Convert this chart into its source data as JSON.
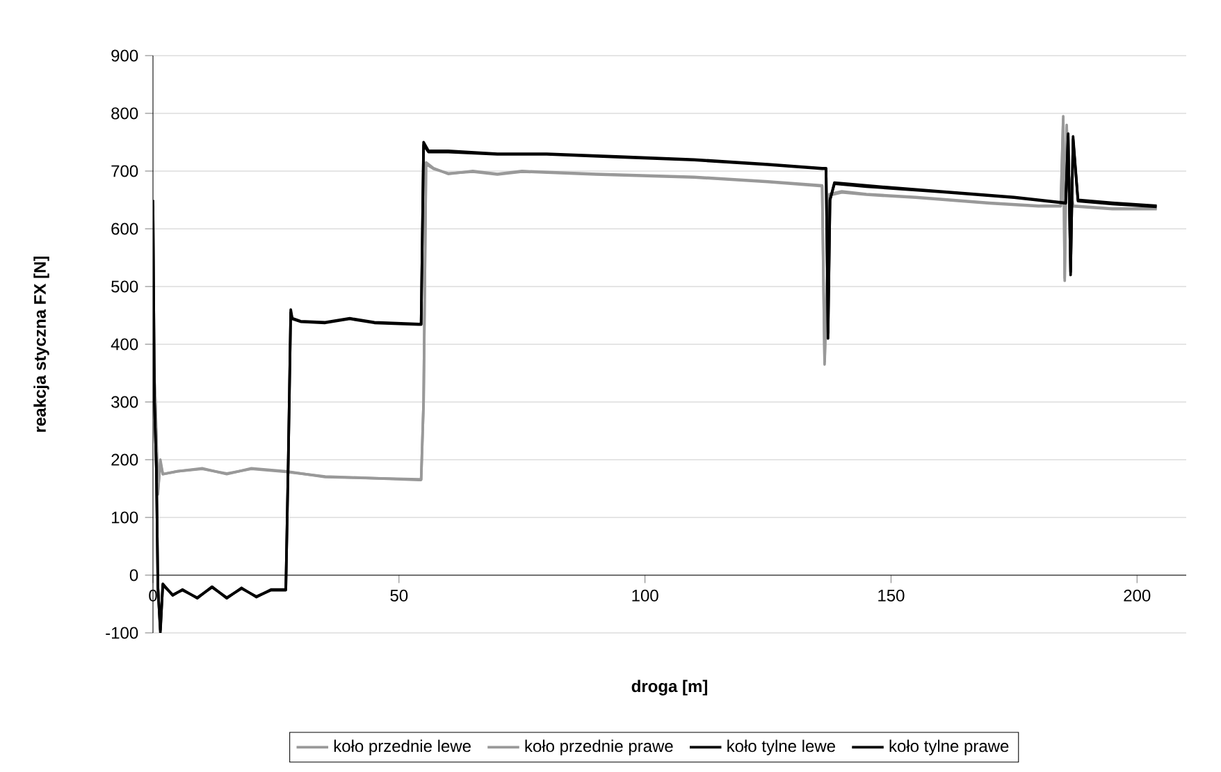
{
  "chart_data": {
    "type": "line",
    "xlabel": "droga [m]",
    "ylabel": "reakcja styczna FX [N]",
    "xlim": [
      0,
      210
    ],
    "ylim": [
      -100,
      900
    ],
    "xticks": [
      0,
      50,
      100,
      150,
      200
    ],
    "yticks": [
      -100,
      0,
      100,
      200,
      300,
      400,
      500,
      600,
      700,
      800,
      900
    ],
    "grid": "y",
    "legend": "bottom",
    "line_style": "solid",
    "marker": "none",
    "series": [
      {
        "name": "koło przednie lewe",
        "color": "#999999",
        "x": [
          0,
          0.5,
          1,
          1.5,
          2,
          5,
          10,
          15,
          20,
          27,
          35,
          45,
          54,
          54.5,
          55,
          55.5,
          57,
          60,
          65,
          70,
          75,
          90,
          110,
          125,
          136,
          136.5,
          137.5,
          140,
          145,
          155,
          170,
          180,
          184.5,
          185,
          185.3,
          185.7,
          186,
          187,
          195,
          204
        ],
        "values": [
          400,
          300,
          140,
          200,
          175,
          180,
          185,
          175,
          185,
          180,
          170,
          168,
          165,
          165,
          300,
          715,
          705,
          695,
          700,
          695,
          700,
          695,
          690,
          682,
          675,
          365,
          660,
          665,
          660,
          655,
          645,
          640,
          640,
          795,
          510,
          780,
          700,
          640,
          635,
          635
        ]
      },
      {
        "name": "koło przednie prawe",
        "color": "#999999",
        "x": [
          0,
          0.5,
          1,
          1.5,
          2,
          5,
          10,
          15,
          20,
          27,
          35,
          45,
          54,
          54.5,
          55,
          55.5,
          57,
          60,
          65,
          70,
          75,
          90,
          110,
          125,
          136,
          136.5,
          137.5,
          140,
          145,
          155,
          170,
          180,
          184.5,
          185,
          185.3,
          185.7,
          186,
          187,
          195,
          204
        ],
        "values": [
          390,
          300,
          145,
          195,
          175,
          180,
          184,
          176,
          184,
          179,
          171,
          168,
          166,
          166,
          300,
          712,
          704,
          696,
          699,
          694,
          699,
          694,
          689,
          681,
          674,
          370,
          658,
          663,
          659,
          654,
          644,
          639,
          639,
          790,
          515,
          775,
          700,
          639,
          634,
          634
        ]
      },
      {
        "name": "koło tylne lewe",
        "color": "#000000",
        "x": [
          0,
          0.3,
          0.7,
          1,
          1.5,
          2,
          4,
          6,
          9,
          12,
          15,
          18,
          21,
          24,
          27,
          27.5,
          28,
          28.3,
          30,
          35,
          40,
          45,
          54,
          54.5,
          55,
          56,
          60,
          70,
          80,
          95,
          110,
          125,
          136,
          136.8,
          137.2,
          137.6,
          138.5,
          145,
          160,
          175,
          185.5,
          186,
          186.5,
          187,
          188,
          195,
          204
        ],
        "values": [
          650,
          300,
          180,
          -20,
          -100,
          -15,
          -35,
          -25,
          -40,
          -20,
          -40,
          -22,
          -38,
          -25,
          -25,
          200,
          460,
          445,
          440,
          438,
          445,
          438,
          435,
          435,
          750,
          735,
          735,
          730,
          730,
          725,
          720,
          712,
          705,
          705,
          410,
          650,
          680,
          675,
          665,
          655,
          645,
          765,
          520,
          760,
          650,
          645,
          640
        ]
      },
      {
        "name": "koło tylne prawe",
        "color": "#000000",
        "x": [
          0,
          0.3,
          0.7,
          1,
          1.5,
          2,
          4,
          6,
          9,
          12,
          15,
          18,
          21,
          24,
          27,
          27.5,
          28,
          28.3,
          30,
          35,
          40,
          45,
          54,
          54.5,
          55,
          56,
          60,
          70,
          80,
          95,
          110,
          125,
          136,
          136.8,
          137.2,
          137.6,
          138.5,
          145,
          160,
          175,
          185.5,
          186,
          186.5,
          187,
          188,
          195,
          204
        ],
        "values": [
          640,
          300,
          180,
          -22,
          -95,
          -17,
          -34,
          -26,
          -39,
          -21,
          -39,
          -23,
          -37,
          -26,
          -26,
          200,
          455,
          444,
          439,
          437,
          444,
          437,
          434,
          434,
          745,
          733,
          733,
          729,
          729,
          724,
          719,
          711,
          704,
          704,
          420,
          650,
          678,
          673,
          664,
          654,
          644,
          760,
          525,
          755,
          648,
          643,
          638
        ]
      }
    ]
  }
}
